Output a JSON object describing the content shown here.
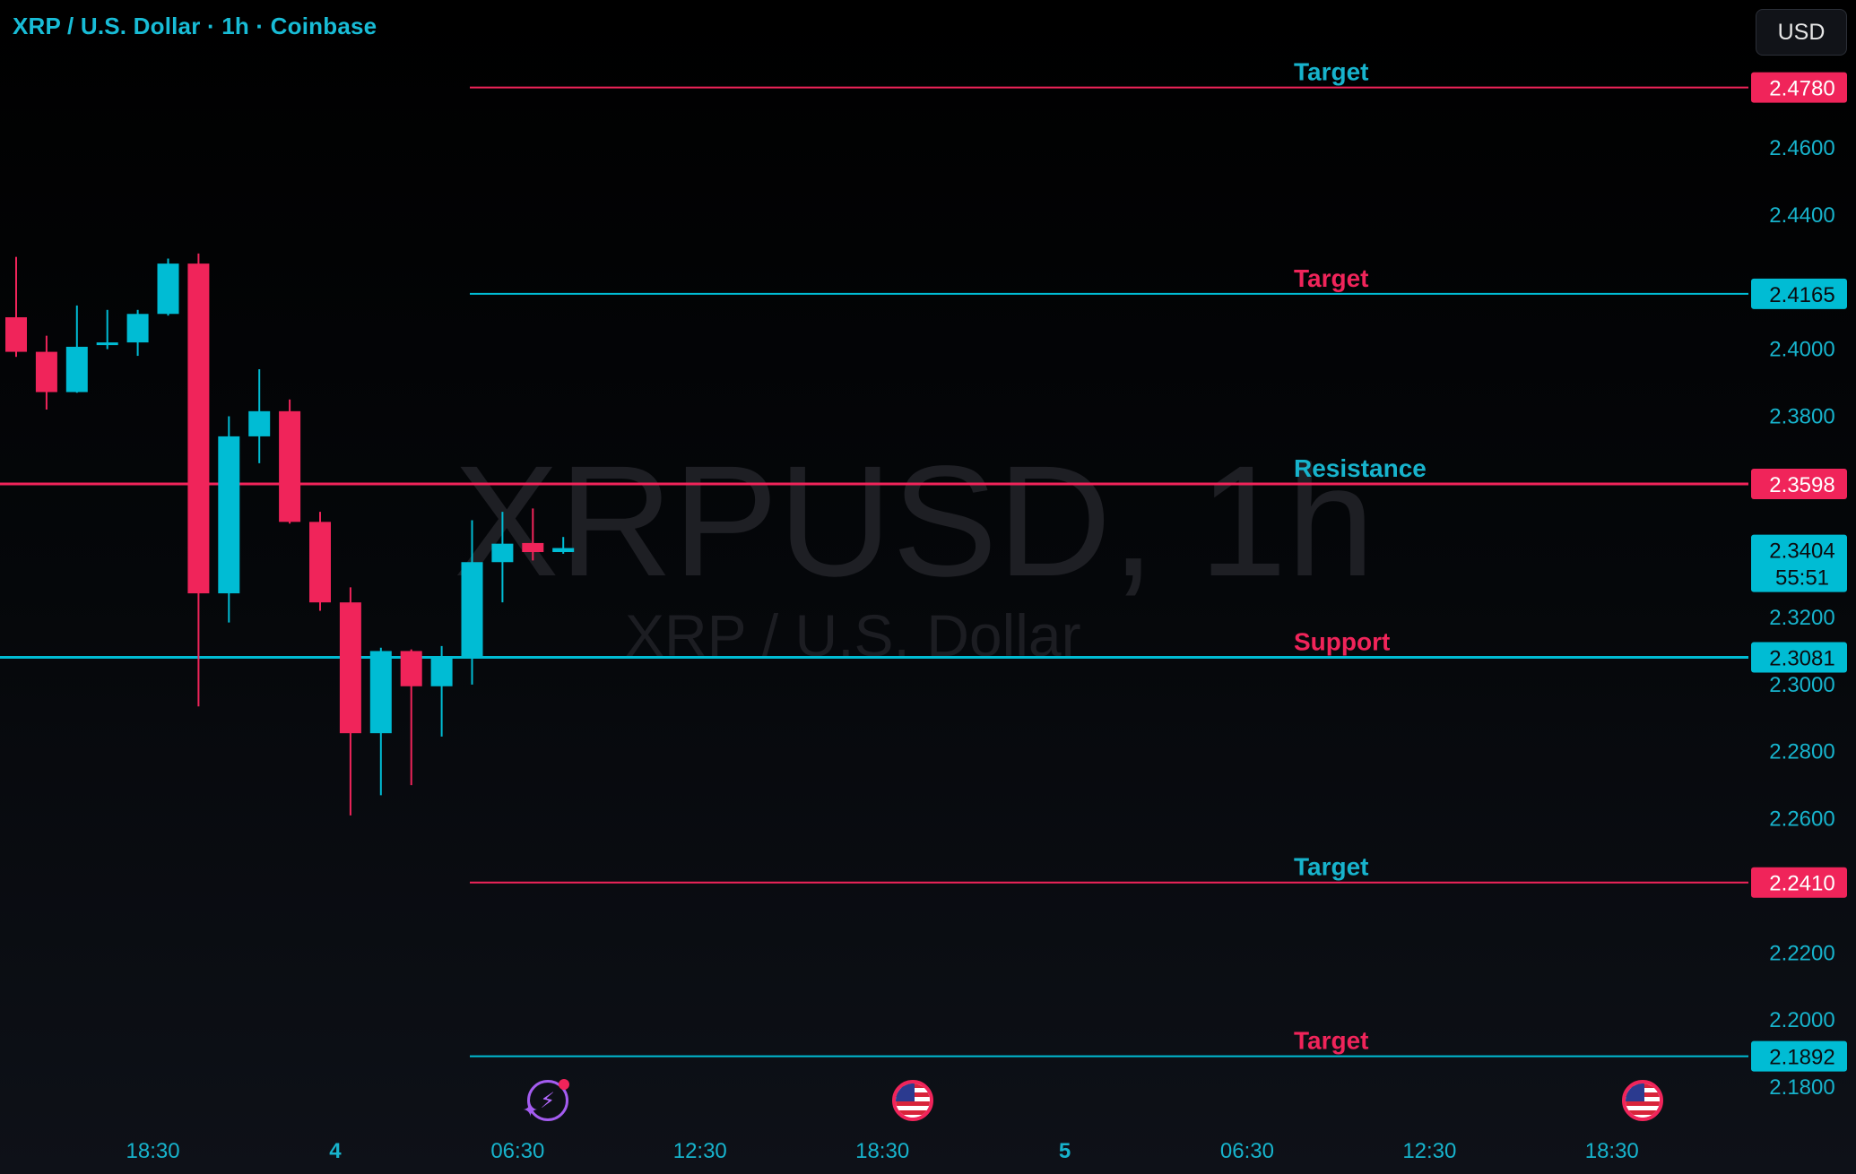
{
  "header": {
    "symbol_title": "XRP / U.S. Dollar · 1h · Coinbase",
    "currency": "USD"
  },
  "watermark": {
    "main": "XRPUSD, 1h",
    "sub": "XRP / U.S. Dollar"
  },
  "colors": {
    "up": "#00bcd4",
    "down": "#f0245a",
    "axis_text": "#17b3cc"
  },
  "chart_data": {
    "type": "candlestick",
    "title": "XRP / U.S. Dollar · 1h · Coinbase",
    "price_axis": {
      "ticks": [
        2.46,
        2.44,
        2.4,
        2.38,
        2.32,
        2.3,
        2.28,
        2.26,
        2.22,
        2.2,
        2.18
      ],
      "tick_labels": [
        "2.4600",
        "2.4400",
        "2.4000",
        "2.3800",
        "2.3200",
        "2.3000",
        "2.2800",
        "2.2600",
        "2.2200",
        "2.2000",
        "2.1800"
      ],
      "range": [
        2.17,
        2.5
      ]
    },
    "time_axis": {
      "labels": [
        {
          "text": "18:30",
          "slot": 4.5,
          "bold": false
        },
        {
          "text": "4",
          "slot": 10.5,
          "bold": true
        },
        {
          "text": "06:30",
          "slot": 16.5,
          "bold": false
        },
        {
          "text": "12:30",
          "slot": 22.5,
          "bold": false
        },
        {
          "text": "18:30",
          "slot": 28.5,
          "bold": false
        },
        {
          "text": "5",
          "slot": 34.5,
          "bold": true
        },
        {
          "text": "06:30",
          "slot": 40.5,
          "bold": false
        },
        {
          "text": "12:30",
          "slot": 46.5,
          "bold": false
        },
        {
          "text": "18:30",
          "slot": 52.5,
          "bold": false
        }
      ]
    },
    "candles": [
      {
        "o": 2.4095,
        "h": 2.4275,
        "l": 2.3977,
        "c": 2.3992
      },
      {
        "o": 2.3992,
        "h": 2.404,
        "l": 2.382,
        "c": 2.3872
      },
      {
        "o": 2.3872,
        "h": 2.413,
        "l": 2.387,
        "c": 2.4007
      },
      {
        "o": 2.4017,
        "h": 2.4117,
        "l": 2.4,
        "c": 2.402
      },
      {
        "o": 2.402,
        "h": 2.4117,
        "l": 2.398,
        "c": 2.4105
      },
      {
        "o": 2.4105,
        "h": 2.427,
        "l": 2.41,
        "c": 2.4255
      },
      {
        "o": 2.4255,
        "h": 2.4285,
        "l": 2.2935,
        "c": 2.3272
      },
      {
        "o": 2.3272,
        "h": 2.38,
        "l": 2.3185,
        "c": 2.374
      },
      {
        "o": 2.374,
        "h": 2.394,
        "l": 2.366,
        "c": 2.3815
      },
      {
        "o": 2.3815,
        "h": 2.385,
        "l": 2.348,
        "c": 2.3485
      },
      {
        "o": 2.3485,
        "h": 2.3515,
        "l": 2.322,
        "c": 2.3245
      },
      {
        "o": 2.3245,
        "h": 2.329,
        "l": 2.261,
        "c": 2.2855
      },
      {
        "o": 2.2855,
        "h": 2.311,
        "l": 2.267,
        "c": 2.31
      },
      {
        "o": 2.31,
        "h": 2.3105,
        "l": 2.27,
        "c": 2.2995
      },
      {
        "o": 2.2995,
        "h": 2.3115,
        "l": 2.2845,
        "c": 2.3085
      },
      {
        "o": 2.3085,
        "h": 2.349,
        "l": 2.3,
        "c": 2.3365
      },
      {
        "o": 2.3365,
        "h": 2.3515,
        "l": 2.3245,
        "c": 2.342
      },
      {
        "o": 2.3422,
        "h": 2.3525,
        "l": 2.337,
        "c": 2.3395
      },
      {
        "o": 2.3395,
        "h": 2.344,
        "l": 2.339,
        "c": 2.3407
      }
    ],
    "levels": [
      {
        "label": "Target",
        "price": 2.478,
        "price_label": "2.4780",
        "line_color": "#f0245a",
        "label_color": "#17b3cc",
        "full_width": false,
        "thick": false
      },
      {
        "label": "Target",
        "price": 2.4165,
        "price_label": "2.4165",
        "line_color": "#00bcd4",
        "label_color": "#f0245a",
        "full_width": false,
        "thick": false
      },
      {
        "label": "Resistance",
        "price": 2.3598,
        "price_label": "2.3598",
        "line_color": "#f0245a",
        "label_color": "#17b3cc",
        "full_width": true,
        "thick": true
      },
      {
        "label": "Support",
        "price": 2.3081,
        "price_label": "2.3081",
        "line_color": "#00bcd4",
        "label_color": "#f0245a",
        "full_width": true,
        "thick": true
      },
      {
        "label": "Target",
        "price": 2.241,
        "price_label": "2.2410",
        "line_color": "#f0245a",
        "label_color": "#17b3cc",
        "full_width": false,
        "thick": false
      },
      {
        "label": "Target",
        "price": 2.1892,
        "price_label": "2.1892",
        "line_color": "#00bcd4",
        "label_color": "#f0245a",
        "full_width": false,
        "thick": false
      }
    ],
    "current_price": {
      "price": 2.3404,
      "price_label": "2.3404",
      "countdown": "55:51"
    }
  },
  "events": [
    {
      "icon": "lightning-event-icon",
      "slot": 17.5
    },
    {
      "icon": "us-flag-event-icon",
      "slot": 29.5
    },
    {
      "icon": "us-flag-event-icon",
      "slot": 53.5
    }
  ]
}
